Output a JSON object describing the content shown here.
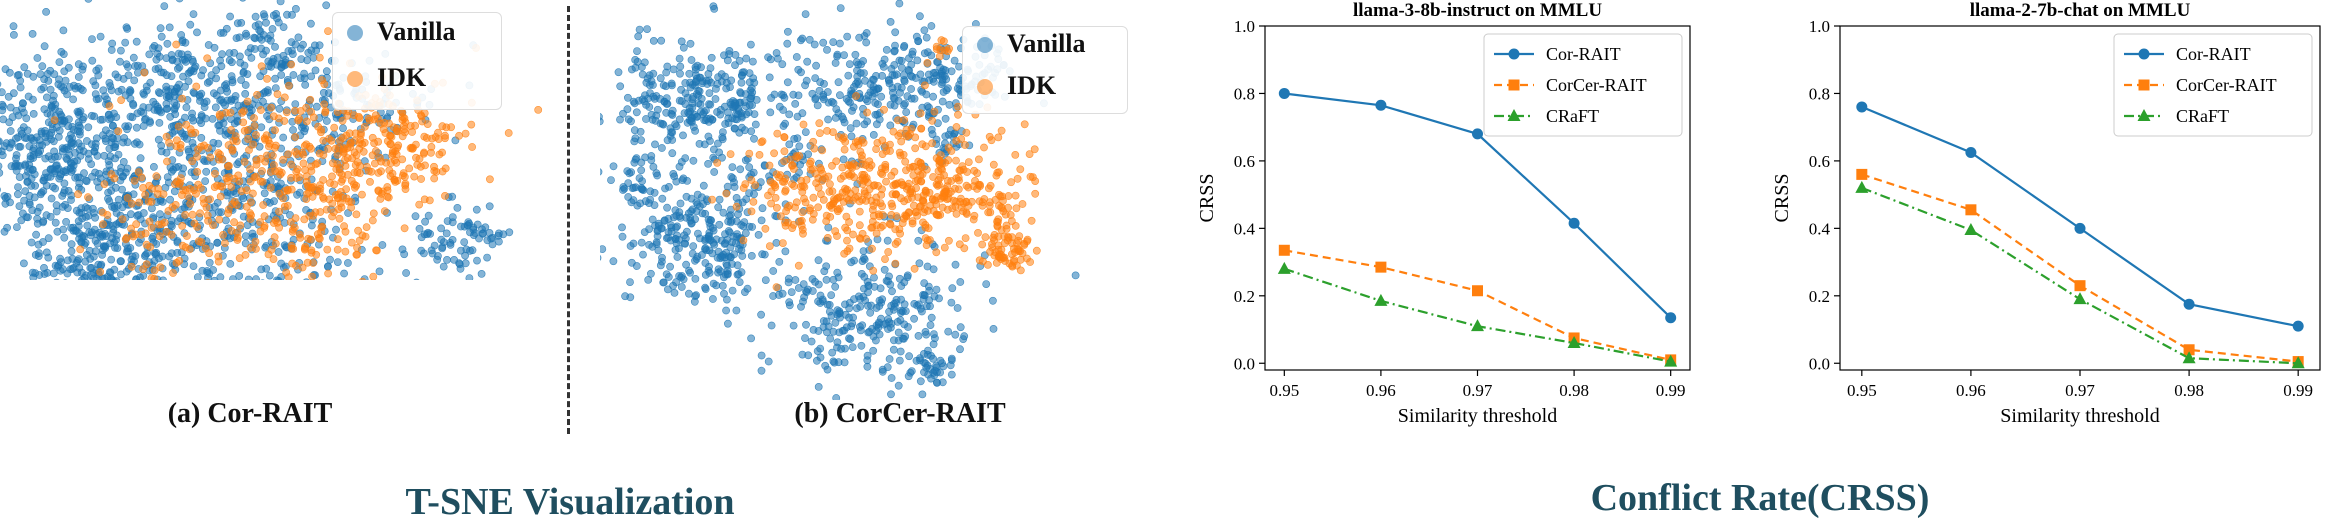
{
  "tsne": {
    "section_title": "T-SNE Visualization",
    "legend": [
      "Vanilla",
      "IDK"
    ],
    "colors": {
      "vanilla": "#1f77b4",
      "idk": "#ff7f0e"
    },
    "panels": [
      {
        "caption": "(a)  Cor-RAIT"
      },
      {
        "caption": "(b) CorCer-RAIT"
      }
    ]
  },
  "conflict": {
    "section_title": "Conflict Rate(CRSS)"
  },
  "chart_data": [
    {
      "type": "line",
      "title": "llama-3-8b-instruct on MMLU",
      "xlabel": "Similarity threshold",
      "ylabel": "CRSS",
      "x": [
        0.95,
        0.96,
        0.97,
        0.98,
        0.99
      ],
      "xticks": [
        "0.95",
        "0.96",
        "0.97",
        "0.98",
        "0.99"
      ],
      "yticks": [
        "0.0",
        "0.2",
        "0.4",
        "0.6",
        "0.8",
        "1.0"
      ],
      "ylim": [
        -0.02,
        1.0
      ],
      "legend_position": "top-right",
      "series": [
        {
          "name": "Cor-RAIT",
          "values": [
            0.8,
            0.765,
            0.68,
            0.415,
            0.135
          ],
          "color": "#1f77b4",
          "marker": "circle",
          "dash": "solid"
        },
        {
          "name": "CorCer-RAIT",
          "values": [
            0.335,
            0.285,
            0.215,
            0.075,
            0.01
          ],
          "color": "#ff7f0e",
          "marker": "square",
          "dash": "dashed"
        },
        {
          "name": "CRaFT",
          "values": [
            0.28,
            0.185,
            0.11,
            0.06,
            0.005
          ],
          "color": "#2ca02c",
          "marker": "triangle",
          "dash": "dashdot"
        }
      ]
    },
    {
      "type": "line",
      "title": "llama-2-7b-chat on MMLU",
      "xlabel": "Similarity threshold",
      "ylabel": "CRSS",
      "x": [
        0.95,
        0.96,
        0.97,
        0.98,
        0.99
      ],
      "xticks": [
        "0.95",
        "0.96",
        "0.97",
        "0.98",
        "0.99"
      ],
      "yticks": [
        "0.0",
        "0.2",
        "0.4",
        "0.6",
        "0.8",
        "1.0"
      ],
      "ylim": [
        -0.02,
        1.0
      ],
      "legend_position": "top-right",
      "series": [
        {
          "name": "Cor-RAIT",
          "values": [
            0.76,
            0.625,
            0.4,
            0.175,
            0.11
          ],
          "color": "#1f77b4",
          "marker": "circle",
          "dash": "solid"
        },
        {
          "name": "CorCer-RAIT",
          "values": [
            0.56,
            0.455,
            0.23,
            0.04,
            0.005
          ],
          "color": "#ff7f0e",
          "marker": "square",
          "dash": "dashed"
        },
        {
          "name": "CRaFT",
          "values": [
            0.52,
            0.395,
            0.19,
            0.015,
            0.0
          ],
          "color": "#2ca02c",
          "marker": "triangle",
          "dash": "dashdot"
        }
      ]
    }
  ]
}
